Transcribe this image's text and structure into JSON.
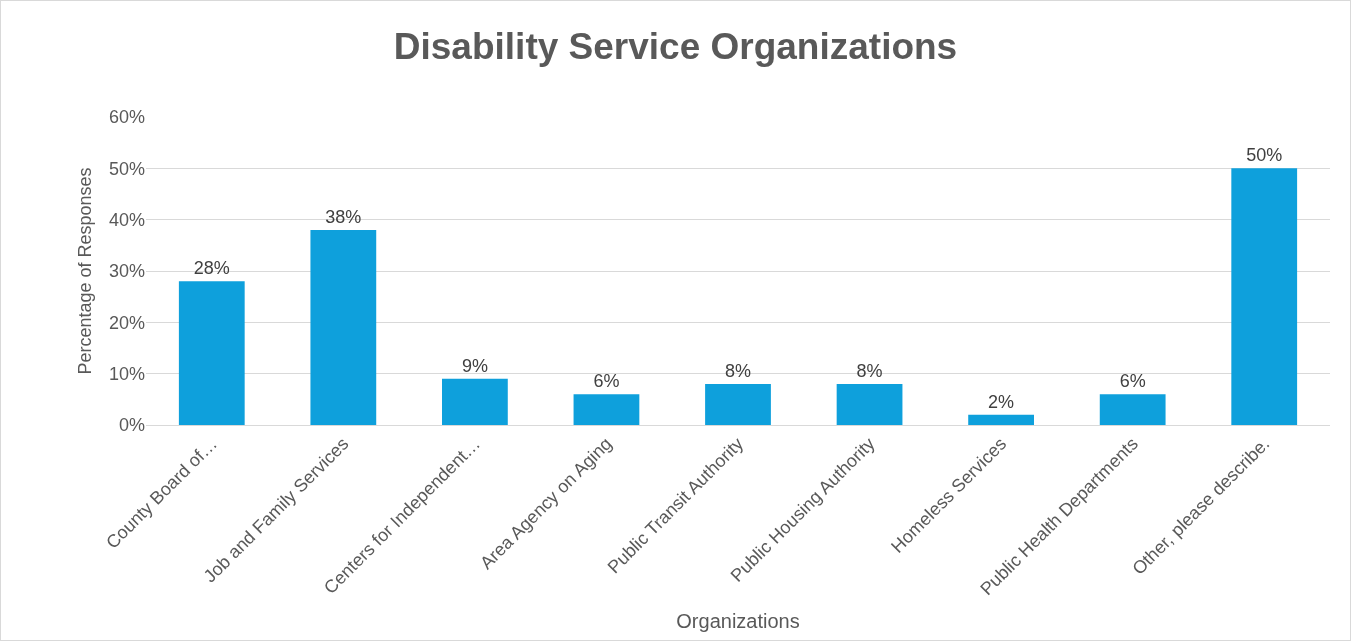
{
  "chart_data": {
    "type": "bar",
    "title": "Disability Service Organizations",
    "xlabel": "Organizations",
    "ylabel": "Percentage of Responses",
    "categories": [
      "County Board of…",
      "Job and Family Services",
      "Centers for Independent…",
      "Area Agency on Aging",
      "Public Transit Authority",
      "Public Housing Authority",
      "Homeless Services",
      "Public Health Departments",
      "Other, please describe."
    ],
    "values": [
      28,
      38,
      9,
      6,
      8,
      8,
      2,
      6,
      50
    ],
    "value_labels": [
      "28%",
      "38%",
      "9%",
      "6%",
      "8%",
      "8%",
      "2%",
      "6%",
      "50%"
    ],
    "color": "#0ea0dc",
    "ylim": [
      0,
      60
    ],
    "yticks": [
      {
        "value": 0,
        "label": "0%"
      },
      {
        "value": 10,
        "label": "10%"
      },
      {
        "value": 20,
        "label": "20%"
      },
      {
        "value": 30,
        "label": "30%"
      },
      {
        "value": 40,
        "label": "40%"
      },
      {
        "value": 50,
        "label": "50%"
      },
      {
        "value": 60,
        "label": "60%"
      }
    ],
    "grid": "y",
    "legend": false
  }
}
